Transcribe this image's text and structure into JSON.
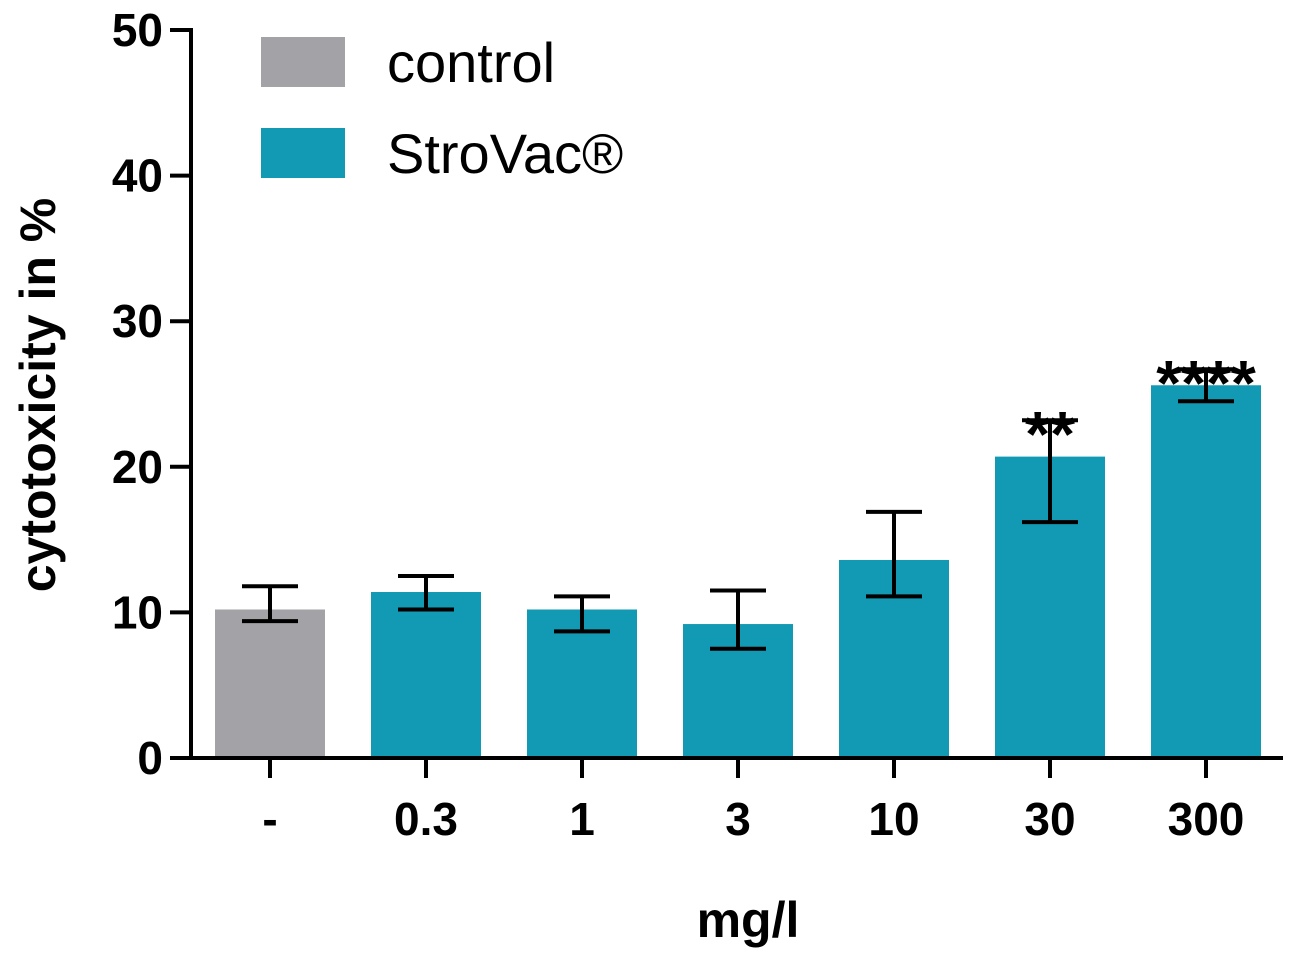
{
  "chart_data": {
    "type": "bar",
    "title": "",
    "xlabel": "mg/l",
    "ylabel": "cytotoxicity in %",
    "ylim": [
      0,
      50
    ],
    "yticks": [
      0,
      10,
      20,
      30,
      40,
      50
    ],
    "grid": false,
    "legend_position": "top-left",
    "categories": [
      "-",
      "0.3",
      "1",
      "3",
      "10",
      "30",
      "300"
    ],
    "values": [
      10.2,
      11.4,
      10.2,
      9.2,
      13.6,
      20.7,
      25.6
    ],
    "error_upper": [
      11.8,
      12.5,
      11.1,
      11.5,
      16.9,
      23.2,
      26.7
    ],
    "error_lower": [
      9.4,
      10.2,
      8.7,
      7.5,
      11.1,
      16.2,
      24.5
    ],
    "bar_series": [
      "control",
      "StroVac®",
      "StroVac®",
      "StroVac®",
      "StroVac®",
      "StroVac®",
      "StroVac®"
    ],
    "significance": [
      "",
      "",
      "",
      "",
      "",
      "**",
      "****"
    ],
    "legend": [
      {
        "name": "control",
        "color": "#a3a2a7"
      },
      {
        "name": "StroVac®",
        "color": "#1299b3"
      }
    ],
    "colors": {
      "control": "#a3a2a7",
      "StroVac®": "#1299b3",
      "axis": "#000000"
    }
  }
}
